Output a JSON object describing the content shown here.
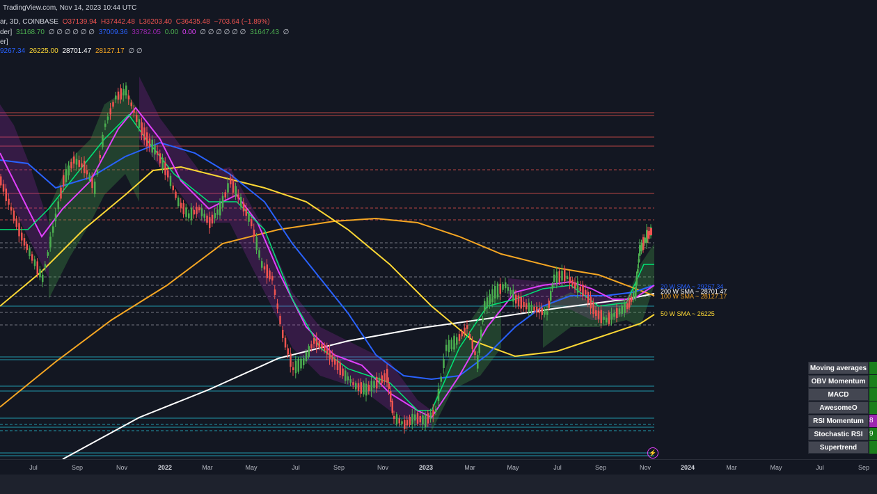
{
  "header": {
    "title": "TradingView.com, Nov 14, 2023 10:44 UTC",
    "line1": {
      "prefix": "ar, 3D, COINBASE",
      "open": "O37139.94",
      "high": "H37442.48",
      "low": "L36203.40",
      "close": "C36435.48",
      "change": "−703.64 (−1.89%)"
    },
    "line2": {
      "prefix": "der]",
      "v1": "31168.70",
      "zeros1": "∅ ∅ ∅ ∅ ∅ ∅",
      "v2": "37009.36",
      "v3": "33782.05",
      "v4": "0.00",
      "v5": "0.00",
      "zeros2": "∅ ∅ ∅ ∅ ∅ ∅",
      "v6": "31647.43",
      "zeros3": "∅"
    },
    "line3": {
      "prefix": "er]"
    },
    "line4": {
      "v1": "9267.34",
      "v2": "26225.00",
      "v3": "28701.47",
      "v4": "28127.17",
      "zeros": "∅ ∅"
    }
  },
  "ma_labels": {
    "sma20": "20 W  SMA  ~ 29267.34",
    "sma200": "200 W  SMA  ~ 28701.47",
    "sma100": "100 W  SMA  ~ 28127.17",
    "sma50": "50 W  SMA  ~ 26225"
  },
  "x_axis": [
    {
      "label": "Jul",
      "bold": false
    },
    {
      "label": "Sep",
      "bold": false
    },
    {
      "label": "Nov",
      "bold": false
    },
    {
      "label": "2022",
      "bold": true
    },
    {
      "label": "Mar",
      "bold": false
    },
    {
      "label": "May",
      "bold": false
    },
    {
      "label": "Jul",
      "bold": false
    },
    {
      "label": "Sep",
      "bold": false
    },
    {
      "label": "Nov",
      "bold": false
    },
    {
      "label": "2023",
      "bold": true
    },
    {
      "label": "Mar",
      "bold": false
    },
    {
      "label": "May",
      "bold": false
    },
    {
      "label": "Jul",
      "bold": false
    },
    {
      "label": "Sep",
      "bold": false
    },
    {
      "label": "Nov",
      "bold": false
    },
    {
      "label": "2024",
      "bold": true
    },
    {
      "label": "Mar",
      "bold": false
    },
    {
      "label": "May",
      "bold": false
    },
    {
      "label": "Jul",
      "bold": false
    },
    {
      "label": "Sep",
      "bold": false
    }
  ],
  "panel": [
    {
      "label": "Moving averages",
      "value": "",
      "color": "#1b7f1b"
    },
    {
      "label": "OBV Momentum",
      "value": "",
      "color": "#1b7f1b"
    },
    {
      "label": "MACD",
      "value": "",
      "color": "#1b7f1b"
    },
    {
      "label": "AwesomeO",
      "value": "",
      "color": "#1b7f1b"
    },
    {
      "label": "RSI Momentum",
      "value": "8",
      "color": "#9c27b0"
    },
    {
      "label": "Stochastic RSI",
      "value": "9",
      "color": "#1b7f1b"
    },
    {
      "label": "Supertrend",
      "value": "",
      "color": "#1b7f1b"
    }
  ],
  "colors": {
    "background": "#131722",
    "up": "#4caf50",
    "down": "#ef5350",
    "sma20": "#2962ff",
    "sma50": "#fdd835",
    "sma100": "#f5a623",
    "sma200": "#ffffff",
    "magenta": "#e040fb"
  },
  "bolt_icon": "⚡"
}
